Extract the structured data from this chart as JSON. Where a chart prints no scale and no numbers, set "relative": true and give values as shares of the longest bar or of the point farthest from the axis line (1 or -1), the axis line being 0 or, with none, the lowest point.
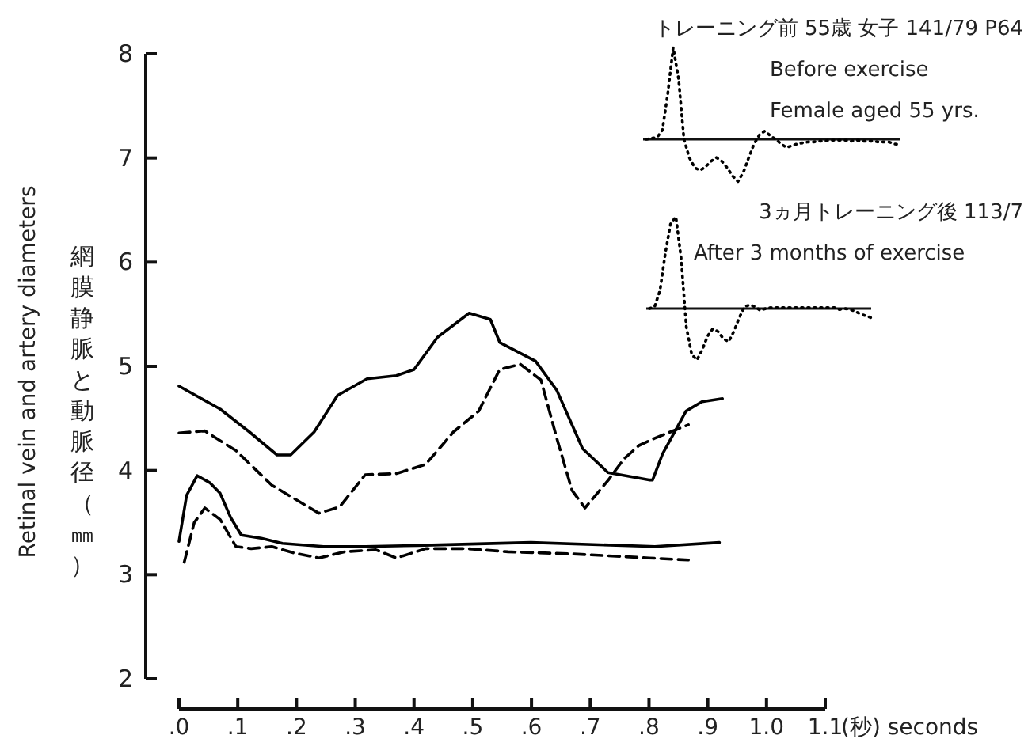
{
  "chart_data": [
    {
      "type": "line",
      "ylabel": "Retinal vein and artery diameters",
      "xlabel": "(秒) seconds",
      "annotations": [
        "網膜静脈と動脈径（㎜）"
      ],
      "xlim": [
        0,
        1.1
      ],
      "ylim": [
        2,
        8
      ],
      "xticks": [
        {
          "value": 0,
          "label": ".0"
        },
        {
          "value": 0.1,
          "label": ".1"
        },
        {
          "value": 0.2,
          "label": ".2"
        },
        {
          "value": 0.3,
          "label": ".3"
        },
        {
          "value": 0.4,
          "label": ".4"
        },
        {
          "value": 0.5,
          "label": ".5"
        },
        {
          "value": 0.6,
          "label": ".6"
        },
        {
          "value": 0.7,
          "label": ".7"
        },
        {
          "value": 0.8,
          "label": ".8"
        },
        {
          "value": 0.9,
          "label": ".9"
        },
        {
          "value": 1.0,
          "label": "1.0"
        },
        {
          "value": 1.1,
          "label": "1.1"
        }
      ],
      "yticks": [
        2,
        3,
        4,
        5,
        6,
        7,
        8
      ],
      "series": [
        {
          "color": "#000000",
          "line_style": "solid",
          "x": [
            0,
            0.07,
            0.12,
            0.167,
            0.19,
            0.23,
            0.27,
            0.32,
            0.37,
            0.4,
            0.44,
            0.494,
            0.53,
            0.546,
            0.607,
            0.643,
            0.687,
            0.73,
            0.8,
            0.806,
            0.823,
            0.863,
            0.89,
            0.925
          ],
          "values": [
            4.81,
            4.59,
            4.37,
            4.15,
            4.15,
            4.37,
            4.72,
            4.88,
            4.91,
            4.97,
            5.28,
            5.51,
            5.45,
            5.23,
            5.05,
            4.77,
            4.21,
            3.98,
            3.91,
            3.91,
            4.16,
            4.57,
            4.66,
            4.69
          ]
        },
        {
          "color": "#000000",
          "line_style": "dashed",
          "x": [
            0,
            0.044,
            0.097,
            0.158,
            0.238,
            0.273,
            0.317,
            0.37,
            0.42,
            0.467,
            0.51,
            0.546,
            0.581,
            0.616,
            0.643,
            0.669,
            0.691,
            0.731,
            0.757,
            0.783,
            0.81,
            0.867
          ],
          "values": [
            4.36,
            4.38,
            4.19,
            3.86,
            3.59,
            3.65,
            3.96,
            3.97,
            4.06,
            4.37,
            4.57,
            4.97,
            5.02,
            4.87,
            4.31,
            3.81,
            3.64,
            3.91,
            4.11,
            4.24,
            4.31,
            4.44
          ]
        },
        {
          "color": "#000000",
          "line_style": "solid",
          "x": [
            0,
            0.013,
            0.031,
            0.053,
            0.07,
            0.088,
            0.106,
            0.14,
            0.176,
            0.246,
            0.317,
            0.405,
            0.599,
            0.81,
            0.92
          ],
          "values": [
            3.32,
            3.76,
            3.95,
            3.88,
            3.78,
            3.55,
            3.38,
            3.35,
            3.3,
            3.27,
            3.27,
            3.28,
            3.31,
            3.27,
            3.31
          ]
        },
        {
          "color": "#000000",
          "line_style": "dashed",
          "x": [
            0.009,
            0.026,
            0.044,
            0.07,
            0.097,
            0.123,
            0.158,
            0.194,
            0.238,
            0.282,
            0.335,
            0.37,
            0.42,
            0.49,
            0.56,
            0.669,
            0.8,
            0.867
          ],
          "values": [
            3.12,
            3.5,
            3.64,
            3.53,
            3.27,
            3.25,
            3.27,
            3.21,
            3.16,
            3.22,
            3.24,
            3.16,
            3.25,
            3.25,
            3.22,
            3.2,
            3.16,
            3.14
          ]
        }
      ]
    },
    {
      "type": "line",
      "relative": true,
      "annotations": [
        "トレーニング前 55歳 女子 141/79 P64",
        "Before exercise",
        "Female aged 55 yrs."
      ],
      "categories": [
        null,
        null,
        null,
        null,
        null,
        null,
        null,
        null,
        null,
        null,
        null,
        null,
        null,
        null,
        null,
        null,
        null,
        null,
        null,
        null,
        null,
        null,
        null,
        null,
        null,
        null,
        null,
        null,
        null,
        null,
        null,
        null,
        null,
        null,
        null,
        null,
        null,
        null,
        null,
        null,
        null,
        null,
        null,
        null,
        null,
        null,
        null,
        null
      ],
      "series": [
        {
          "color": "#000000",
          "line_style": "dotted",
          "values": [
            0,
            0.01,
            0.02,
            0.1,
            0.5,
            1,
            0.66,
            0,
            -0.2,
            -0.31,
            -0.34,
            -0.3,
            -0.24,
            -0.2,
            -0.24,
            -0.31,
            -0.4,
            -0.46,
            -0.36,
            -0.2,
            -0.05,
            0.05,
            0.09,
            0.04,
            0,
            -0.05,
            -0.09,
            -0.07,
            -0.05,
            -0.04,
            -0.03,
            -0.03,
            -0.02,
            -0.02,
            -0.01,
            -0.01,
            -0.01,
            -0.01,
            -0.02,
            -0.01,
            -0.02,
            -0.02,
            -0.02,
            -0.03,
            -0.03,
            -0.03,
            -0.05,
            -0.06
          ]
        }
      ]
    },
    {
      "type": "line",
      "relative": true,
      "annotations": [
        "3ヵ月トレーニング後 113/7",
        "After 3 months of exercise"
      ],
      "categories": [
        null,
        null,
        null,
        null,
        null,
        null,
        null,
        null,
        null,
        null,
        null,
        null,
        null,
        null,
        null,
        null,
        null,
        null,
        null,
        null,
        null,
        null,
        null,
        null,
        null,
        null,
        null,
        null,
        null,
        null,
        null,
        null,
        null,
        null,
        null,
        null,
        null,
        null,
        null,
        null,
        null,
        null,
        null
      ],
      "series": [
        {
          "color": "#000000",
          "line_style": "dotted",
          "values": [
            0,
            0.02,
            0.2,
            0.6,
            0.92,
            1,
            0.55,
            -0.2,
            -0.5,
            -0.56,
            -0.45,
            -0.3,
            -0.22,
            -0.25,
            -0.33,
            -0.36,
            -0.25,
            -0.1,
            0.02,
            0.04,
            0.02,
            -0.02,
            0,
            0.01,
            0.01,
            0.01,
            0.01,
            0.01,
            0.01,
            0.01,
            0.01,
            0.01,
            0.01,
            0.01,
            0.01,
            0.01,
            -0.01,
            0,
            -0.01,
            -0.03,
            -0.06,
            -0.08,
            -0.1
          ]
        }
      ]
    }
  ]
}
